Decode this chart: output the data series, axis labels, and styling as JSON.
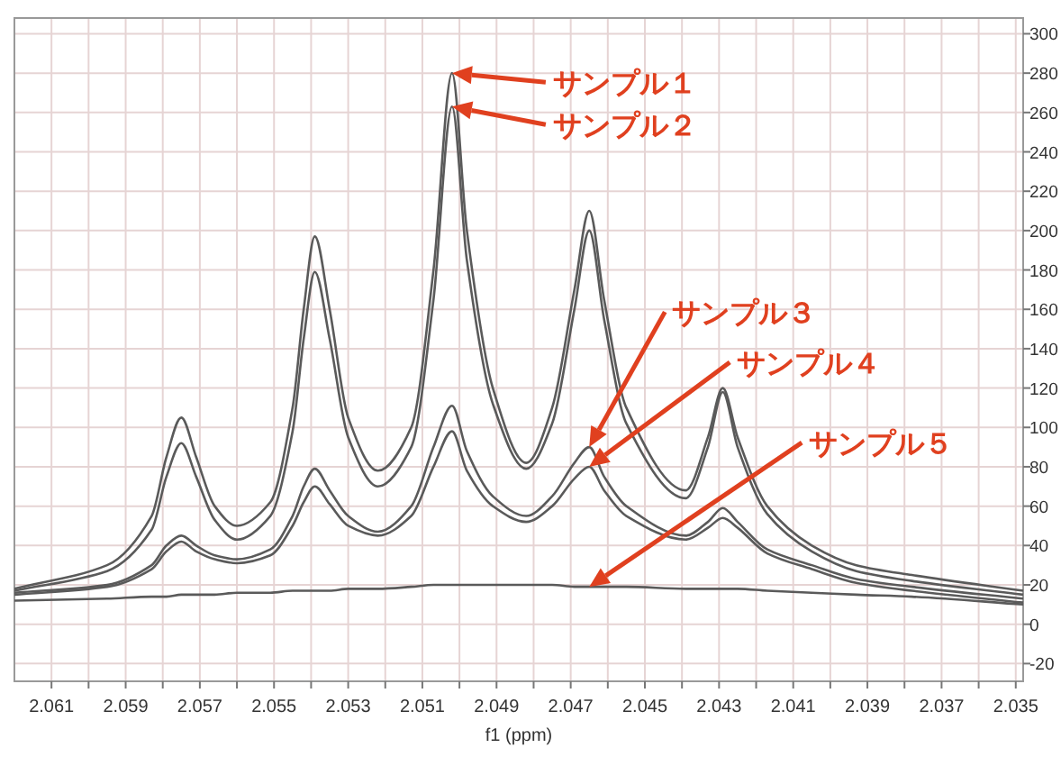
{
  "chart_data": {
    "type": "line",
    "xlabel": "f1 (ppm)",
    "x": [
      2.062,
      2.0595,
      2.0583,
      2.0579,
      2.0575,
      2.0571,
      2.0566,
      2.056,
      2.0551,
      2.0545,
      2.0542,
      2.0539,
      2.0535,
      2.053,
      2.0522,
      2.0513,
      2.0507,
      2.0502,
      2.0498,
      2.0491,
      2.0482,
      2.0475,
      2.0469,
      2.0465,
      2.0461,
      2.0455,
      2.0439,
      2.0433,
      2.0429,
      2.0425,
      2.0417,
      2.0405,
      2.0393,
      2.0378,
      2.0348
    ],
    "series": [
      {
        "color": "#5a5a5a",
        "values": [
          18,
          30,
          55,
          85,
          105,
          85,
          60,
          50,
          62,
          110,
          160,
          197,
          160,
          105,
          78,
          100,
          180,
          280,
          200,
          120,
          82,
          110,
          170,
          210,
          165,
          110,
          68,
          95,
          120,
          95,
          60,
          40,
          30,
          25,
          17
        ]
      },
      {
        "color": "#5a5a5a",
        "values": [
          17,
          27,
          48,
          75,
          92,
          75,
          53,
          43,
          55,
          98,
          145,
          179,
          145,
          95,
          70,
          90,
          165,
          263,
          185,
          112,
          79,
          102,
          160,
          200,
          155,
          102,
          64,
          90,
          118,
          90,
          56,
          37,
          27,
          22,
          15
        ]
      },
      {
        "color": "#5a5a5a",
        "values": [
          16,
          20,
          30,
          40,
          45,
          40,
          35,
          33,
          38,
          55,
          70,
          79,
          68,
          55,
          47,
          60,
          90,
          111,
          88,
          65,
          55,
          65,
          82,
          90,
          75,
          60,
          45,
          52,
          59,
          52,
          38,
          30,
          23,
          19,
          13
        ]
      },
      {
        "color": "#5a5a5a",
        "values": [
          15,
          19,
          28,
          37,
          42,
          37,
          33,
          31,
          35,
          50,
          62,
          70,
          61,
          50,
          45,
          55,
          80,
          98,
          78,
          60,
          52,
          60,
          74,
          80,
          68,
          55,
          43,
          49,
          54,
          49,
          36,
          28,
          21,
          17,
          11
        ]
      },
      {
        "color": "#5a5a5a",
        "values": [
          12,
          13,
          14,
          14,
          15,
          15,
          15,
          16,
          16,
          17,
          17,
          17,
          17,
          18,
          18,
          19,
          20,
          20,
          20,
          20,
          20,
          20,
          19,
          19,
          19,
          19,
          18,
          18,
          18,
          18,
          17,
          16,
          15,
          14,
          10
        ]
      }
    ],
    "annotations": [
      "サンプル１",
      "サンプル２",
      "サンプル３",
      "サンプル４",
      "サンプル５"
    ],
    "xlim": [
      2.062,
      2.0348
    ],
    "xticks": [
      2.061,
      {
        "value": 2.06,
        "label": null
      },
      2.059,
      {
        "value": 2.058,
        "label": null
      },
      2.057,
      {
        "value": 2.056,
        "label": null
      },
      2.055,
      {
        "value": 2.054,
        "label": null
      },
      2.053,
      {
        "value": 2.052,
        "label": null
      },
      2.051,
      {
        "value": 2.05,
        "label": null
      },
      2.049,
      {
        "value": 2.048,
        "label": null
      },
      2.047,
      {
        "value": 2.046,
        "label": null
      },
      2.045,
      {
        "value": 2.044,
        "label": null
      },
      2.043,
      {
        "value": 2.042,
        "label": null
      },
      2.041,
      {
        "value": 2.04,
        "label": null
      },
      2.039,
      {
        "value": 2.038,
        "label": null
      },
      2.037,
      {
        "value": 2.036,
        "label": null
      },
      2.035
    ],
    "ylim": [
      -29,
      308
    ],
    "yticks": [
      -20,
      0,
      20,
      40,
      60,
      80,
      100,
      120,
      140,
      160,
      180,
      200,
      220,
      240,
      260,
      280,
      300
    ],
    "grid": true,
    "line_style": "solid",
    "marker": "none"
  }
}
